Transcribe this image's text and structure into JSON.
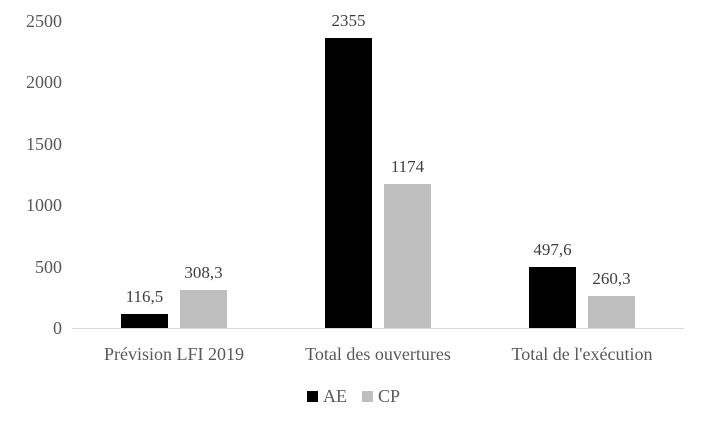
{
  "chart_data": {
    "type": "bar",
    "title": "",
    "xlabel": "",
    "ylabel": "",
    "categories": [
      "Prévision LFI 2019",
      "Total des ouvertures",
      "Total de l'exécution"
    ],
    "series": [
      {
        "name": "AE",
        "color": "#000000",
        "values": [
          116.5,
          2355,
          497.6
        ],
        "value_labels": [
          "116,5",
          "2355",
          "497,6"
        ]
      },
      {
        "name": "CP",
        "color": "#bfbfbf",
        "values": [
          308.3,
          1174,
          260.3
        ],
        "value_labels": [
          "308,3",
          "1174",
          "260,3"
        ]
      }
    ],
    "y_axis": {
      "min": 0,
      "max": 2500,
      "step": 500,
      "tick_labels": [
        "0",
        "500",
        "1000",
        "1500",
        "2000",
        "2500"
      ]
    },
    "grid": false,
    "legend": {
      "position": "bottom",
      "entries": [
        "AE",
        "CP"
      ]
    },
    "colors": {
      "axis_line": "#d9d9d9",
      "tick_label": "#595959",
      "category_label": "#595959",
      "data_label": "#404040",
      "legend_label": "#595959",
      "background": "#ffffff"
    }
  }
}
